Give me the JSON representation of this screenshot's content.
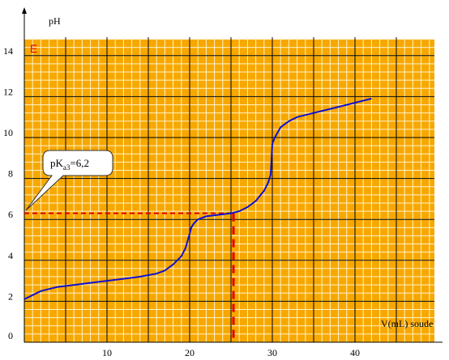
{
  "chart_data": {
    "type": "line",
    "ylabel": "pH",
    "xlabel": "V(mL) soude",
    "xlim": [
      0,
      50
    ],
    "ylim": [
      0,
      14.9
    ],
    "x_ticks": [
      "10",
      "20",
      "30",
      "40"
    ],
    "y_ticks": [
      "0",
      "2",
      "4",
      "6",
      "8",
      "10",
      "12",
      "14"
    ],
    "grid": true,
    "point_label": "E",
    "series": [
      {
        "x": [
          0,
          1,
          2,
          4,
          6,
          8,
          10,
          12,
          14,
          16,
          17,
          18,
          19,
          19.5,
          20,
          20.2,
          20.5,
          21,
          22,
          23,
          24,
          25,
          26,
          27,
          28,
          29,
          29.5,
          29.8,
          30,
          30.3,
          31,
          32,
          33,
          34,
          36,
          38,
          40,
          42
        ],
        "y": [
          2.1,
          2.3,
          2.5,
          2.7,
          2.8,
          2.9,
          3.0,
          3.1,
          3.2,
          3.35,
          3.5,
          3.8,
          4.2,
          4.6,
          5.3,
          5.6,
          5.8,
          6.0,
          6.15,
          6.2,
          6.25,
          6.3,
          6.4,
          6.6,
          6.9,
          7.4,
          7.8,
          8.2,
          9.7,
          10.0,
          10.5,
          10.8,
          11.0,
          11.1,
          11.3,
          11.5,
          11.7,
          11.9
        ]
      }
    ],
    "equivalence": {
      "x": 25.3,
      "y": 6.3
    },
    "annotation": {
      "text": "pK",
      "subscript": "a3",
      "suffix": "=6,2"
    }
  }
}
